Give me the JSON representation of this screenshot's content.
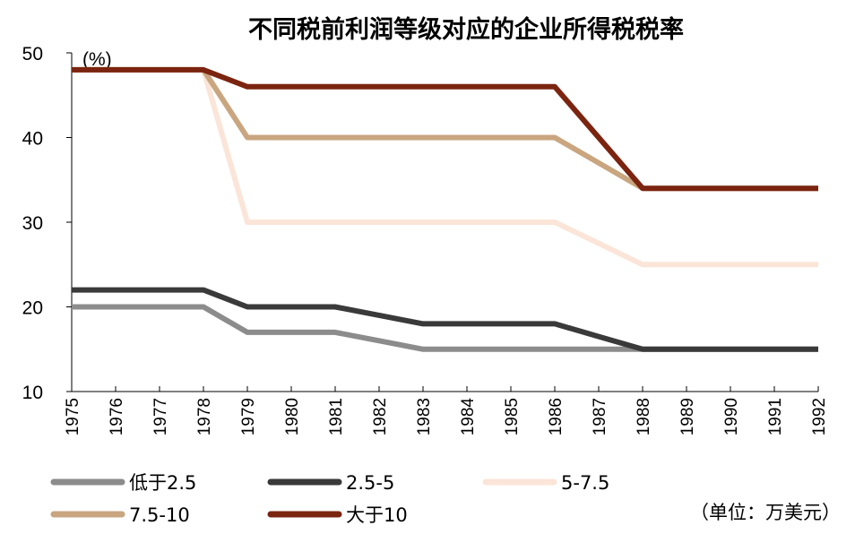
{
  "chart_data": {
    "type": "line",
    "title": "不同税前利润等级对应的企业所得税税率",
    "ylabel": "(%)",
    "unit_note": "（单位：万美元）",
    "ylim": [
      10,
      50
    ],
    "yticks": [
      10,
      20,
      30,
      40,
      50
    ],
    "x": [
      "1975",
      "1976",
      "1977",
      "1978",
      "1979",
      "1980",
      "1981",
      "1982",
      "1983",
      "1984",
      "1985",
      "1986",
      "1987",
      "1988",
      "1989",
      "1990",
      "1991",
      "1992"
    ],
    "series": [
      {
        "name": "低于2.5",
        "color": "#8c8c8c",
        "values": [
          20,
          20,
          20,
          20,
          17,
          17,
          17,
          16,
          15,
          15,
          15,
          15,
          15,
          15,
          15,
          15,
          15,
          15
        ]
      },
      {
        "name": "2.5-5",
        "color": "#3a3a3a",
        "values": [
          22,
          22,
          22,
          22,
          20,
          20,
          20,
          19,
          18,
          18,
          18,
          18,
          16.5,
          15,
          15,
          15,
          15,
          15
        ]
      },
      {
        "name": "5-7.5",
        "color": "#fbe5d8",
        "values": [
          48,
          48,
          48,
          48,
          30,
          30,
          30,
          30,
          30,
          30,
          30,
          30,
          27.5,
          25,
          25,
          25,
          25,
          25
        ]
      },
      {
        "name": "7.5-10",
        "color": "#c9a680",
        "values": [
          48,
          48,
          48,
          48,
          40,
          40,
          40,
          40,
          40,
          40,
          40,
          40,
          37,
          34,
          34,
          34,
          34,
          34
        ]
      },
      {
        "name": "大于10",
        "color": "#7b2410",
        "values": [
          48,
          48,
          48,
          48,
          46,
          46,
          46,
          46,
          46,
          46,
          46,
          46,
          40,
          34,
          34,
          34,
          34,
          34
        ]
      }
    ]
  }
}
